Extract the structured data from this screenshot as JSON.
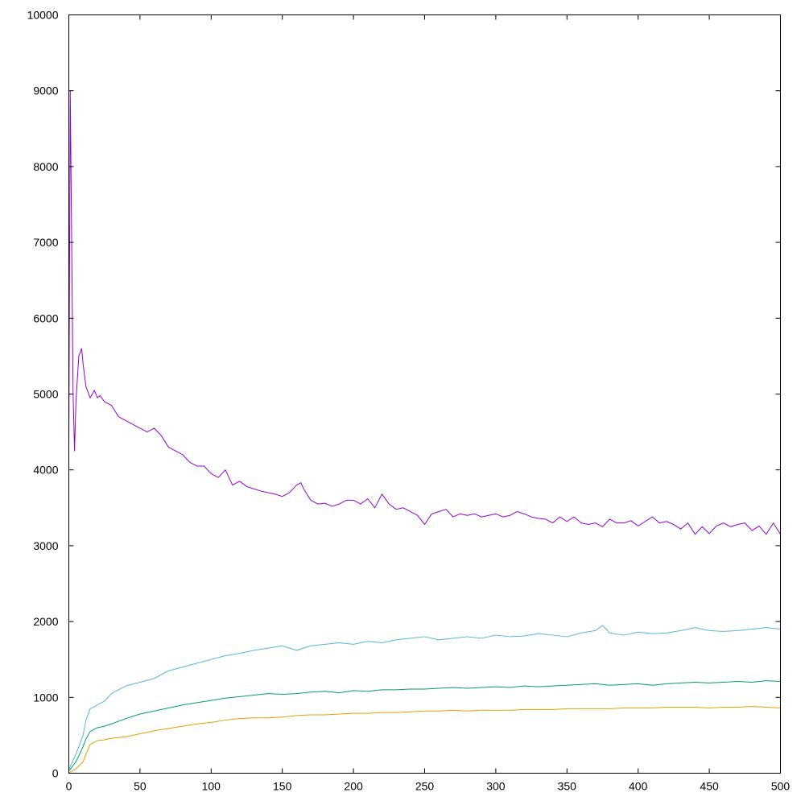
{
  "chart_data": {
    "type": "line",
    "title": "",
    "xlabel": "",
    "ylabel": "",
    "xlim": [
      0,
      500
    ],
    "ylim": [
      0,
      10000
    ],
    "x_ticks": [
      "0",
      "50",
      "100",
      "150",
      "200",
      "250",
      "300",
      "350",
      "400",
      "450",
      "500"
    ],
    "y_ticks": [
      "0",
      "1000",
      "2000",
      "3000",
      "4000",
      "5000",
      "6000",
      "7000",
      "8000",
      "9000",
      "10000"
    ],
    "grid": false,
    "legend": "none",
    "series": [
      {
        "color": "#9400d3",
        "x": [
          0,
          1,
          2,
          3,
          4,
          5,
          7,
          9,
          10,
          12,
          15,
          18,
          20,
          22,
          25,
          30,
          35,
          40,
          45,
          50,
          55,
          60,
          65,
          70,
          75,
          80,
          85,
          90,
          95,
          100,
          105,
          110,
          115,
          120,
          125,
          130,
          135,
          140,
          145,
          150,
          155,
          160,
          163,
          165,
          170,
          175,
          180,
          185,
          190,
          195,
          200,
          205,
          210,
          215,
          220,
          225,
          230,
          235,
          240,
          245,
          250,
          255,
          260,
          265,
          270,
          275,
          280,
          285,
          290,
          295,
          300,
          305,
          310,
          315,
          320,
          325,
          330,
          335,
          340,
          345,
          350,
          355,
          360,
          365,
          370,
          375,
          380,
          385,
          390,
          395,
          400,
          405,
          410,
          415,
          420,
          425,
          430,
          435,
          440,
          445,
          450,
          455,
          460,
          465,
          470,
          475,
          480,
          485,
          490,
          495,
          500
        ],
        "y": [
          4250,
          9000,
          7000,
          5000,
          4250,
          4900,
          5500,
          5600,
          5400,
          5100,
          4950,
          5050,
          4950,
          4980,
          4900,
          4850,
          4700,
          4650,
          4600,
          4550,
          4500,
          4550,
          4450,
          4300,
          4250,
          4200,
          4100,
          4050,
          4050,
          3950,
          3900,
          4000,
          3800,
          3850,
          3780,
          3750,
          3720,
          3700,
          3680,
          3650,
          3700,
          3800,
          3830,
          3750,
          3600,
          3550,
          3560,
          3520,
          3550,
          3600,
          3600,
          3550,
          3620,
          3500,
          3680,
          3550,
          3480,
          3500,
          3450,
          3400,
          3280,
          3420,
          3450,
          3480,
          3380,
          3420,
          3400,
          3420,
          3380,
          3400,
          3420,
          3380,
          3400,
          3450,
          3420,
          3380,
          3360,
          3350,
          3300,
          3380,
          3320,
          3380,
          3300,
          3280,
          3300,
          3250,
          3350,
          3300,
          3300,
          3330,
          3260,
          3320,
          3380,
          3300,
          3320,
          3280,
          3220,
          3300,
          3150,
          3250,
          3160,
          3260,
          3300,
          3250,
          3280,
          3300,
          3200,
          3260,
          3150,
          3300,
          3150
        ]
      },
      {
        "color": "#56b4e9",
        "x": [
          0,
          5,
          10,
          12,
          15,
          20,
          25,
          30,
          40,
          50,
          60,
          70,
          80,
          90,
          100,
          110,
          120,
          130,
          140,
          150,
          160,
          170,
          180,
          190,
          200,
          210,
          220,
          230,
          240,
          250,
          260,
          270,
          280,
          290,
          300,
          310,
          320,
          330,
          340,
          350,
          360,
          370,
          375,
          380,
          390,
          400,
          410,
          420,
          430,
          440,
          450,
          460,
          470,
          480,
          490,
          500
        ],
        "y": [
          50,
          250,
          500,
          700,
          850,
          900,
          950,
          1050,
          1150,
          1200,
          1250,
          1350,
          1400,
          1450,
          1500,
          1550,
          1580,
          1620,
          1650,
          1680,
          1620,
          1680,
          1700,
          1720,
          1700,
          1740,
          1720,
          1760,
          1780,
          1800,
          1760,
          1780,
          1800,
          1780,
          1820,
          1800,
          1810,
          1840,
          1820,
          1800,
          1850,
          1880,
          1950,
          1850,
          1820,
          1860,
          1840,
          1850,
          1880,
          1920,
          1880,
          1870,
          1880,
          1900,
          1920,
          1900
        ]
      },
      {
        "color": "#009e73",
        "x": [
          0,
          5,
          10,
          12,
          15,
          20,
          25,
          30,
          40,
          50,
          60,
          70,
          80,
          90,
          100,
          110,
          120,
          130,
          140,
          150,
          160,
          170,
          180,
          190,
          200,
          210,
          220,
          230,
          240,
          250,
          260,
          270,
          280,
          290,
          300,
          310,
          320,
          330,
          340,
          350,
          360,
          370,
          380,
          390,
          400,
          410,
          420,
          430,
          440,
          450,
          460,
          470,
          480,
          490,
          500
        ],
        "y": [
          30,
          150,
          350,
          450,
          550,
          600,
          620,
          650,
          720,
          780,
          820,
          860,
          900,
          930,
          960,
          990,
          1010,
          1030,
          1050,
          1040,
          1050,
          1070,
          1080,
          1060,
          1090,
          1080,
          1100,
          1100,
          1110,
          1110,
          1120,
          1130,
          1120,
          1130,
          1140,
          1130,
          1150,
          1140,
          1150,
          1160,
          1170,
          1180,
          1160,
          1170,
          1180,
          1160,
          1180,
          1190,
          1200,
          1190,
          1200,
          1210,
          1200,
          1220,
          1210
        ]
      },
      {
        "color": "#e69f00",
        "x": [
          0,
          5,
          10,
          12,
          15,
          20,
          25,
          30,
          40,
          50,
          60,
          70,
          80,
          90,
          100,
          110,
          120,
          130,
          140,
          150,
          160,
          170,
          180,
          190,
          200,
          210,
          220,
          230,
          240,
          250,
          260,
          270,
          280,
          290,
          300,
          310,
          320,
          330,
          340,
          350,
          360,
          370,
          380,
          390,
          400,
          410,
          420,
          430,
          440,
          450,
          460,
          470,
          480,
          490,
          500
        ],
        "y": [
          0,
          60,
          150,
          250,
          380,
          430,
          440,
          460,
          480,
          520,
          560,
          590,
          620,
          650,
          670,
          700,
          720,
          730,
          730,
          740,
          760,
          770,
          770,
          780,
          790,
          790,
          800,
          800,
          810,
          820,
          820,
          830,
          820,
          830,
          830,
          830,
          840,
          840,
          840,
          850,
          850,
          850,
          850,
          860,
          860,
          860,
          870,
          870,
          870,
          860,
          870,
          870,
          880,
          870,
          860
        ]
      }
    ]
  }
}
